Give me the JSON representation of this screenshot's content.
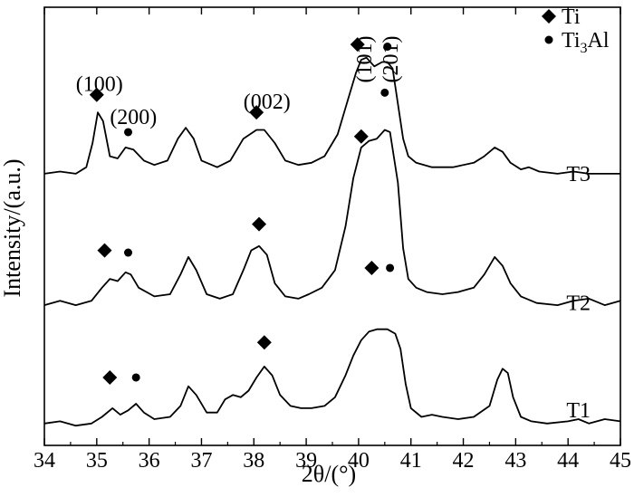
{
  "chart_data": {
    "type": "line",
    "xlabel": "2θ/(°)",
    "ylabel": "Intensity/(a.u.)",
    "xlim": [
      34,
      45
    ],
    "xticks": [
      34,
      35,
      36,
      37,
      38,
      39,
      40,
      41,
      42,
      43,
      44,
      45
    ],
    "xtick_labels": [
      "34",
      "35",
      "36",
      "37",
      "38",
      "39",
      "40",
      "41",
      "42",
      "43",
      "44",
      "45"
    ],
    "ylim": [
      0,
      1
    ],
    "grid": false,
    "legend": {
      "placement": "top-right",
      "entries": [
        {
          "label": "Ti",
          "marker": "diamond"
        },
        {
          "label": "Ti",
          "sub": "3",
          "suffix": "Al",
          "marker": "dot"
        }
      ]
    },
    "series": [
      {
        "name": "T1",
        "baseline": 0.05,
        "points": [
          [
            34.0,
            0.05
          ],
          [
            34.3,
            0.055
          ],
          [
            34.6,
            0.045
          ],
          [
            34.9,
            0.05
          ],
          [
            35.1,
            0.065
          ],
          [
            35.3,
            0.085
          ],
          [
            35.45,
            0.07
          ],
          [
            35.6,
            0.08
          ],
          [
            35.75,
            0.095
          ],
          [
            35.9,
            0.075
          ],
          [
            36.1,
            0.06
          ],
          [
            36.4,
            0.065
          ],
          [
            36.6,
            0.09
          ],
          [
            36.75,
            0.135
          ],
          [
            36.9,
            0.115
          ],
          [
            37.1,
            0.075
          ],
          [
            37.3,
            0.075
          ],
          [
            37.45,
            0.105
          ],
          [
            37.6,
            0.115
          ],
          [
            37.75,
            0.11
          ],
          [
            37.9,
            0.125
          ],
          [
            38.05,
            0.155
          ],
          [
            38.2,
            0.18
          ],
          [
            38.35,
            0.16
          ],
          [
            38.5,
            0.115
          ],
          [
            38.7,
            0.09
          ],
          [
            38.9,
            0.085
          ],
          [
            39.1,
            0.085
          ],
          [
            39.35,
            0.09
          ],
          [
            39.55,
            0.11
          ],
          [
            39.75,
            0.16
          ],
          [
            39.9,
            0.205
          ],
          [
            40.05,
            0.24
          ],
          [
            40.2,
            0.26
          ],
          [
            40.35,
            0.265
          ],
          [
            40.55,
            0.265
          ],
          [
            40.7,
            0.255
          ],
          [
            40.8,
            0.22
          ],
          [
            40.9,
            0.14
          ],
          [
            41.0,
            0.085
          ],
          [
            41.2,
            0.065
          ],
          [
            41.4,
            0.07
          ],
          [
            41.6,
            0.065
          ],
          [
            41.9,
            0.06
          ],
          [
            42.2,
            0.065
          ],
          [
            42.5,
            0.09
          ],
          [
            42.65,
            0.15
          ],
          [
            42.75,
            0.175
          ],
          [
            42.85,
            0.165
          ],
          [
            42.95,
            0.11
          ],
          [
            43.1,
            0.065
          ],
          [
            43.3,
            0.055
          ],
          [
            43.6,
            0.05
          ],
          [
            44.0,
            0.055
          ],
          [
            44.2,
            0.06
          ],
          [
            44.4,
            0.05
          ],
          [
            44.7,
            0.06
          ],
          [
            45.0,
            0.055
          ]
        ]
      },
      {
        "name": "T2",
        "baseline": 0.32,
        "points": [
          [
            34.0,
            0.32
          ],
          [
            34.3,
            0.33
          ],
          [
            34.6,
            0.32
          ],
          [
            34.9,
            0.33
          ],
          [
            35.1,
            0.36
          ],
          [
            35.25,
            0.38
          ],
          [
            35.4,
            0.375
          ],
          [
            35.55,
            0.395
          ],
          [
            35.65,
            0.39
          ],
          [
            35.8,
            0.36
          ],
          [
            36.1,
            0.34
          ],
          [
            36.4,
            0.345
          ],
          [
            36.6,
            0.39
          ],
          [
            36.75,
            0.43
          ],
          [
            36.9,
            0.4
          ],
          [
            37.1,
            0.345
          ],
          [
            37.35,
            0.335
          ],
          [
            37.6,
            0.345
          ],
          [
            37.8,
            0.4
          ],
          [
            37.95,
            0.445
          ],
          [
            38.1,
            0.455
          ],
          [
            38.25,
            0.435
          ],
          [
            38.4,
            0.37
          ],
          [
            38.6,
            0.34
          ],
          [
            38.85,
            0.335
          ],
          [
            39.05,
            0.345
          ],
          [
            39.3,
            0.36
          ],
          [
            39.55,
            0.4
          ],
          [
            39.75,
            0.5
          ],
          [
            39.9,
            0.61
          ],
          [
            40.05,
            0.68
          ],
          [
            40.2,
            0.695
          ],
          [
            40.35,
            0.7
          ],
          [
            40.5,
            0.72
          ],
          [
            40.6,
            0.715
          ],
          [
            40.75,
            0.6
          ],
          [
            40.85,
            0.45
          ],
          [
            40.95,
            0.38
          ],
          [
            41.1,
            0.36
          ],
          [
            41.3,
            0.35
          ],
          [
            41.6,
            0.345
          ],
          [
            41.9,
            0.35
          ],
          [
            42.2,
            0.36
          ],
          [
            42.4,
            0.39
          ],
          [
            42.6,
            0.43
          ],
          [
            42.75,
            0.41
          ],
          [
            42.9,
            0.37
          ],
          [
            43.1,
            0.34
          ],
          [
            43.4,
            0.325
          ],
          [
            43.8,
            0.32
          ],
          [
            44.1,
            0.33
          ],
          [
            44.4,
            0.335
          ],
          [
            44.7,
            0.32
          ],
          [
            45.0,
            0.33
          ]
        ]
      },
      {
        "name": "T3",
        "baseline": 0.62,
        "points": [
          [
            34.0,
            0.62
          ],
          [
            34.3,
            0.625
          ],
          [
            34.6,
            0.62
          ],
          [
            34.8,
            0.635
          ],
          [
            34.92,
            0.69
          ],
          [
            35.02,
            0.76
          ],
          [
            35.12,
            0.74
          ],
          [
            35.25,
            0.66
          ],
          [
            35.4,
            0.655
          ],
          [
            35.55,
            0.68
          ],
          [
            35.7,
            0.675
          ],
          [
            35.9,
            0.65
          ],
          [
            36.1,
            0.64
          ],
          [
            36.35,
            0.65
          ],
          [
            36.55,
            0.7
          ],
          [
            36.7,
            0.725
          ],
          [
            36.85,
            0.7
          ],
          [
            37.0,
            0.65
          ],
          [
            37.3,
            0.635
          ],
          [
            37.55,
            0.65
          ],
          [
            37.8,
            0.7
          ],
          [
            38.05,
            0.72
          ],
          [
            38.2,
            0.72
          ],
          [
            38.4,
            0.69
          ],
          [
            38.6,
            0.65
          ],
          [
            38.85,
            0.64
          ],
          [
            39.1,
            0.645
          ],
          [
            39.35,
            0.66
          ],
          [
            39.6,
            0.71
          ],
          [
            39.8,
            0.79
          ],
          [
            39.95,
            0.85
          ],
          [
            40.05,
            0.88
          ],
          [
            40.15,
            0.885
          ],
          [
            40.3,
            0.865
          ],
          [
            40.45,
            0.875
          ],
          [
            40.55,
            0.875
          ],
          [
            40.65,
            0.86
          ],
          [
            40.75,
            0.78
          ],
          [
            40.85,
            0.7
          ],
          [
            40.95,
            0.66
          ],
          [
            41.1,
            0.645
          ],
          [
            41.4,
            0.635
          ],
          [
            41.8,
            0.635
          ],
          [
            42.2,
            0.645
          ],
          [
            42.4,
            0.66
          ],
          [
            42.6,
            0.68
          ],
          [
            42.75,
            0.67
          ],
          [
            42.9,
            0.645
          ],
          [
            43.1,
            0.63
          ],
          [
            43.25,
            0.635
          ],
          [
            43.45,
            0.625
          ],
          [
            43.8,
            0.62
          ],
          [
            44.1,
            0.625
          ],
          [
            44.4,
            0.62
          ],
          [
            44.7,
            0.62
          ],
          [
            45.0,
            0.62
          ]
        ]
      }
    ],
    "annotations": [
      {
        "text": "(100)",
        "x": 35.05,
        "y": 0.82,
        "rotate": 0
      },
      {
        "text": "(200)",
        "x": 35.7,
        "y": 0.745,
        "rotate": 0
      },
      {
        "text": "(002)",
        "x": 38.25,
        "y": 0.78,
        "rotate": 0
      },
      {
        "text": "(101)",
        "x": 40.15,
        "y": 0.935,
        "rotate": -90
      },
      {
        "text": "(201)",
        "x": 40.65,
        "y": 0.935,
        "rotate": -90
      },
      {
        "text": "T3",
        "x": 44.2,
        "y": 0.615,
        "rotate": 0
      },
      {
        "text": "T2",
        "x": 44.2,
        "y": 0.32,
        "rotate": 0
      },
      {
        "text": "T1",
        "x": 44.2,
        "y": 0.075,
        "rotate": 0
      }
    ],
    "markers": [
      {
        "type": "diamond",
        "x": 35.0,
        "y": 0.8
      },
      {
        "type": "dot",
        "x": 35.6,
        "y": 0.715
      },
      {
        "type": "diamond",
        "x": 38.05,
        "y": 0.76
      },
      {
        "type": "diamond",
        "x": 39.98,
        "y": 0.915
      },
      {
        "type": "dot",
        "x": 40.55,
        "y": 0.91
      },
      {
        "type": "diamond",
        "x": 40.05,
        "y": 0.705
      },
      {
        "type": "dot",
        "x": 40.5,
        "y": 0.805
      },
      {
        "type": "diamond",
        "x": 35.15,
        "y": 0.445
      },
      {
        "type": "dot",
        "x": 35.6,
        "y": 0.44
      },
      {
        "type": "diamond",
        "x": 38.1,
        "y": 0.505
      },
      {
        "type": "diamond",
        "x": 40.25,
        "y": 0.405
      },
      {
        "type": "dot",
        "x": 40.6,
        "y": 0.405
      },
      {
        "type": "diamond",
        "x": 35.25,
        "y": 0.155
      },
      {
        "type": "dot",
        "x": 35.75,
        "y": 0.155
      },
      {
        "type": "diamond",
        "x": 38.2,
        "y": 0.235
      }
    ]
  }
}
